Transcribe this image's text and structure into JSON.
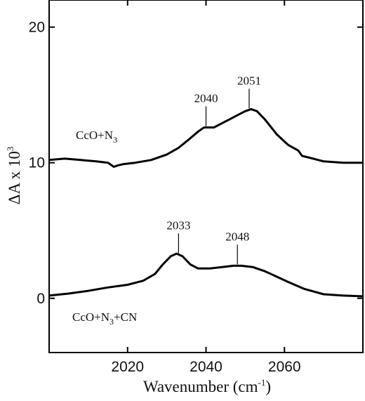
{
  "chart_data": {
    "type": "line",
    "title": "",
    "xlabel_main": "Wavenumber (cm",
    "xlabel_sup": "-1",
    "xlabel_end": ")",
    "ylabel_main": "ΔA x 10",
    "ylabel_sup": "3",
    "xlim": [
      2000,
      2080
    ],
    "ylim": [
      -4,
      22
    ],
    "xticks": [
      2020,
      2040,
      2060
    ],
    "yticks": [
      0,
      10,
      20
    ],
    "grid": false,
    "series": [
      {
        "label_main": "CcO+N",
        "label_sub": "3",
        "label_end": "",
        "x": [
          2000,
          2004,
          2008,
          2012,
          2015,
          2016.5,
          2017.5,
          2019,
          2022,
          2026,
          2030,
          2033,
          2036,
          2038,
          2039.5,
          2040.5,
          2042,
          2044,
          2046,
          2048,
          2050,
          2051.5,
          2053,
          2055,
          2058,
          2061,
          2063.5,
          2064.5,
          2066,
          2070,
          2075,
          2080
        ],
        "y": [
          10.2,
          10.3,
          10.2,
          10.1,
          10.0,
          9.7,
          9.8,
          9.9,
          10.0,
          10.2,
          10.6,
          11.1,
          11.8,
          12.3,
          12.6,
          12.6,
          12.6,
          12.9,
          13.2,
          13.5,
          13.8,
          13.95,
          13.8,
          13.2,
          12.1,
          11.3,
          10.9,
          10.5,
          10.4,
          10.1,
          10.0,
          10.0
        ]
      },
      {
        "label_main": "CcO+N",
        "label_sub": "3",
        "label_end": "+CN",
        "x": [
          2000,
          2005,
          2010,
          2015,
          2020,
          2024,
          2027,
          2029,
          2031,
          2032.5,
          2034,
          2036,
          2038,
          2041,
          2044,
          2047,
          2049,
          2052,
          2055,
          2058,
          2061,
          2065,
          2070,
          2075,
          2080
        ],
        "y": [
          0.2,
          0.35,
          0.55,
          0.8,
          1.0,
          1.3,
          1.8,
          2.5,
          3.1,
          3.3,
          3.1,
          2.5,
          2.2,
          2.2,
          2.3,
          2.4,
          2.4,
          2.3,
          2.0,
          1.6,
          1.2,
          0.7,
          0.3,
          0.2,
          0.15
        ]
      }
    ],
    "annotations": [
      {
        "text": "2040",
        "x": 2040
      },
      {
        "text": "2051",
        "x": 2051
      },
      {
        "text": "2033",
        "x": 2033
      },
      {
        "text": "2048",
        "x": 2048
      }
    ]
  }
}
